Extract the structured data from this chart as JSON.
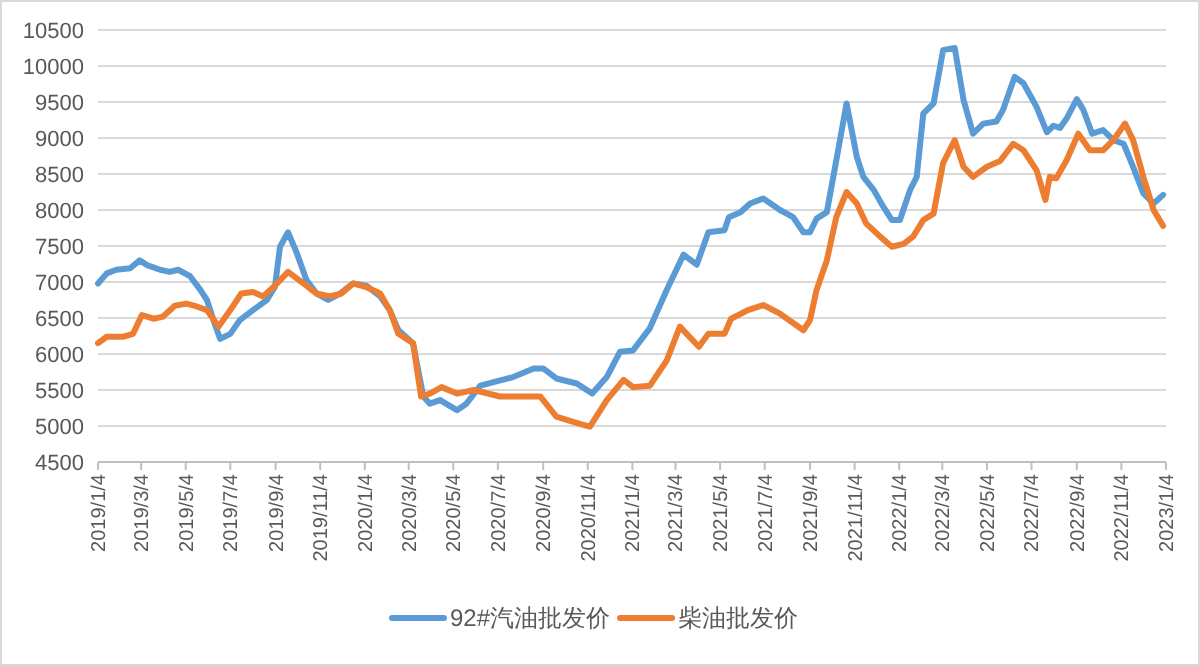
{
  "chart_data": {
    "type": "line",
    "grid": "y",
    "legend": "bottom",
    "xlim": [
      "2019-01-04",
      "2023-01-04"
    ],
    "xticks": [
      {
        "value": "2019-01-04",
        "label": "2019/1/4"
      },
      {
        "value": "2019-03-04",
        "label": "2019/3/4"
      },
      {
        "value": "2019-05-04",
        "label": "2019/5/4"
      },
      {
        "value": "2019-07-04",
        "label": "2019/7/4"
      },
      {
        "value": "2019-09-04",
        "label": "2019/9/4"
      },
      {
        "value": "2019-11-04",
        "label": "2019/11/4"
      },
      {
        "value": "2020-01-04",
        "label": "2020/1/4"
      },
      {
        "value": "2020-03-04",
        "label": "2020/3/4"
      },
      {
        "value": "2020-05-04",
        "label": "2020/5/4"
      },
      {
        "value": "2020-07-04",
        "label": "2020/7/4"
      },
      {
        "value": "2020-09-04",
        "label": "2020/9/4"
      },
      {
        "value": "2020-11-04",
        "label": "2020/11/4"
      },
      {
        "value": "2021-01-04",
        "label": "2021/1/4"
      },
      {
        "value": "2021-03-04",
        "label": "2021/3/4"
      },
      {
        "value": "2021-05-04",
        "label": "2021/5/4"
      },
      {
        "value": "2021-07-04",
        "label": "2021/7/4"
      },
      {
        "value": "2021-09-04",
        "label": "2021/9/4"
      },
      {
        "value": "2021-11-04",
        "label": "2021/11/4"
      },
      {
        "value": "2022-01-04",
        "label": "2022/1/4"
      },
      {
        "value": "2022-03-04",
        "label": "2022/3/4"
      },
      {
        "value": "2022-05-04",
        "label": "2022/5/4"
      },
      {
        "value": "2022-07-04",
        "label": "2022/7/4"
      },
      {
        "value": "2022-09-04",
        "label": "2022/9/4"
      },
      {
        "value": "2022-11-04",
        "label": "2022/11/4"
      },
      {
        "value": "2023-01-04",
        "label": "2023/1/4"
      }
    ],
    "ylim": [
      4500,
      10500
    ],
    "yticks": [
      4500,
      5000,
      5500,
      6000,
      6500,
      7000,
      7500,
      8000,
      8500,
      9000,
      9500,
      10000,
      10500
    ],
    "series": [
      {
        "name": "92#汽油批发价",
        "color": "#5b9bd5",
        "x": [
          "2019-01-04",
          "2019-01-16",
          "2019-01-29",
          "2019-02-17",
          "2019-03-02",
          "2019-03-13",
          "2019-03-30",
          "2019-04-12",
          "2019-04-24",
          "2019-05-10",
          "2019-05-24",
          "2019-06-02",
          "2019-06-11",
          "2019-06-20",
          "2019-07-04",
          "2019-07-17",
          "2019-08-04",
          "2019-08-23",
          "2019-09-03",
          "2019-09-10",
          "2019-09-21",
          "2019-10-03",
          "2019-10-16",
          "2019-10-30",
          "2019-11-15",
          "2019-12-01",
          "2019-12-19",
          "2020-01-06",
          "2020-01-25",
          "2020-02-07",
          "2020-02-19",
          "2020-03-10",
          "2020-03-24",
          "2020-04-02",
          "2020-04-16",
          "2020-05-09",
          "2020-05-22",
          "2020-06-10",
          "2020-07-02",
          "2020-07-25",
          "2020-08-22",
          "2020-09-04",
          "2020-09-22",
          "2020-10-20",
          "2020-11-10",
          "2020-11-30",
          "2020-12-18",
          "2021-01-05",
          "2021-01-28",
          "2021-02-20",
          "2021-03-15",
          "2021-04-02",
          "2021-04-18",
          "2021-05-10",
          "2021-05-16",
          "2021-06-01",
          "2021-06-14",
          "2021-07-02",
          "2021-07-25",
          "2021-08-12",
          "2021-08-26",
          "2021-09-04",
          "2021-09-13",
          "2021-09-27",
          "2021-10-10",
          "2021-10-24",
          "2021-11-07",
          "2021-11-16",
          "2021-11-30",
          "2021-12-13",
          "2021-12-25",
          "2022-01-05",
          "2022-01-19",
          "2022-01-28",
          "2022-02-06",
          "2022-02-20",
          "2022-03-05",
          "2022-03-21",
          "2022-04-02",
          "2022-04-15",
          "2022-04-29",
          "2022-05-17",
          "2022-05-26",
          "2022-06-11",
          "2022-06-23",
          "2022-07-11",
          "2022-07-25",
          "2022-08-03",
          "2022-08-12",
          "2022-08-21",
          "2022-09-04",
          "2022-09-13",
          "2022-09-25",
          "2022-10-10",
          "2022-10-24",
          "2022-11-07",
          "2022-11-20",
          "2022-12-04",
          "2022-12-18",
          "2022-12-31"
        ],
        "values": [
          6980,
          7120,
          7170,
          7190,
          7300,
          7230,
          7170,
          7140,
          7170,
          7080,
          6890,
          6750,
          6470,
          6210,
          6280,
          6470,
          6610,
          6750,
          6930,
          7490,
          7690,
          7400,
          7030,
          6840,
          6750,
          6840,
          6980,
          6950,
          6800,
          6610,
          6330,
          6150,
          5410,
          5310,
          5360,
          5220,
          5310,
          5560,
          5620,
          5680,
          5800,
          5800,
          5660,
          5590,
          5450,
          5680,
          6030,
          6050,
          6360,
          6890,
          7380,
          7240,
          7690,
          7720,
          7900,
          7970,
          8090,
          8160,
          8000,
          7900,
          7690,
          7690,
          7880,
          7970,
          8690,
          9480,
          8740,
          8460,
          8280,
          8050,
          7860,
          7860,
          8280,
          8460,
          9340,
          9480,
          10220,
          10250,
          9530,
          9060,
          9200,
          9230,
          9390,
          9850,
          9760,
          9430,
          9080,
          9170,
          9140,
          9270,
          9540,
          9390,
          9060,
          9110,
          8970,
          8920,
          8600,
          8230,
          8090,
          8210
        ]
      },
      {
        "name": "柴油批发价",
        "color": "#ed7d31",
        "x": [
          "2019-01-04",
          "2019-01-16",
          "2019-02-08",
          "2019-02-21",
          "2019-03-05",
          "2019-03-21",
          "2019-04-03",
          "2019-04-19",
          "2019-05-05",
          "2019-05-19",
          "2019-06-02",
          "2019-06-18",
          "2019-07-04",
          "2019-07-19",
          "2019-08-04",
          "2019-08-18",
          "2019-09-01",
          "2019-09-21",
          "2019-10-12",
          "2019-10-30",
          "2019-11-17",
          "2019-12-03",
          "2019-12-19",
          "2020-01-06",
          "2020-01-25",
          "2020-02-07",
          "2020-02-19",
          "2020-03-10",
          "2020-03-21",
          "2020-04-02",
          "2020-04-18",
          "2020-05-09",
          "2020-06-01",
          "2020-07-07",
          "2020-08-31",
          "2020-09-22",
          "2020-10-24",
          "2020-11-07",
          "2020-11-30",
          "2020-12-23",
          "2021-01-05",
          "2021-01-28",
          "2021-02-20",
          "2021-03-10",
          "2021-04-05",
          "2021-04-18",
          "2021-05-10",
          "2021-05-19",
          "2021-06-11",
          "2021-07-02",
          "2021-07-25",
          "2021-08-26",
          "2021-09-04",
          "2021-09-13",
          "2021-09-27",
          "2021-10-10",
          "2021-10-24",
          "2021-11-07",
          "2021-11-20",
          "2021-12-09",
          "2021-12-25",
          "2022-01-10",
          "2022-01-23",
          "2022-02-06",
          "2022-02-20",
          "2022-03-05",
          "2022-03-21",
          "2022-04-02",
          "2022-04-15",
          "2022-05-04",
          "2022-05-22",
          "2022-06-09",
          "2022-06-23",
          "2022-07-11",
          "2022-07-23",
          "2022-07-29",
          "2022-08-07",
          "2022-08-21",
          "2022-09-06",
          "2022-09-22",
          "2022-10-10",
          "2022-10-24",
          "2022-11-09",
          "2022-11-20",
          "2022-12-04",
          "2022-12-18",
          "2022-12-31"
        ],
        "values": [
          6150,
          6240,
          6240,
          6280,
          6540,
          6490,
          6520,
          6670,
          6700,
          6660,
          6610,
          6380,
          6610,
          6840,
          6860,
          6800,
          6930,
          7140,
          6980,
          6840,
          6800,
          6840,
          6980,
          6930,
          6840,
          6610,
          6280,
          6150,
          5410,
          5450,
          5540,
          5450,
          5500,
          5410,
          5410,
          5130,
          5030,
          4990,
          5360,
          5640,
          5540,
          5560,
          5910,
          6380,
          6100,
          6280,
          6280,
          6490,
          6610,
          6680,
          6560,
          6330,
          6470,
          6890,
          7300,
          7900,
          8250,
          8090,
          7810,
          7630,
          7490,
          7530,
          7630,
          7860,
          7950,
          8650,
          8970,
          8600,
          8460,
          8600,
          8680,
          8920,
          8830,
          8550,
          8140,
          8460,
          8440,
          8690,
          9060,
          8830,
          8830,
          8970,
          9200,
          8970,
          8460,
          8000,
          7780
        ]
      }
    ]
  }
}
